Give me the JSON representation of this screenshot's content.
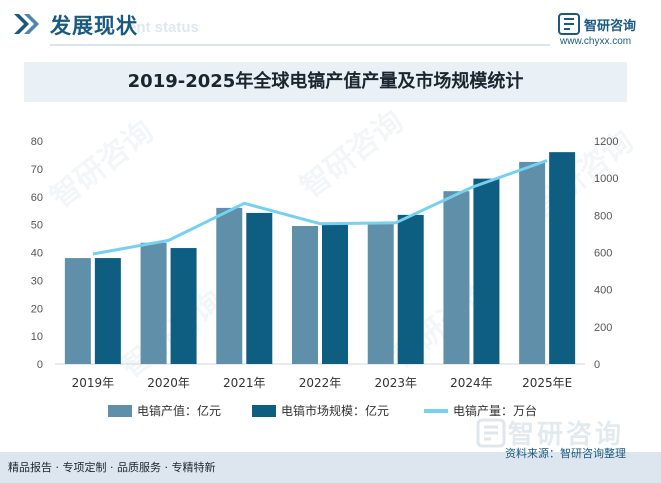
{
  "header": {
    "title": "发展现状",
    "subtitle": "ent status",
    "brand_name": "智研咨询",
    "brand_url": "www.chyxx.com"
  },
  "chart_data": {
    "type": "bar",
    "title": "2019-2025年全球电镐产值产量及市场规模统计",
    "categories": [
      "2019年",
      "2020年",
      "2021年",
      "2022年",
      "2023年",
      "2024年",
      "2025年E"
    ],
    "series": [
      {
        "name": "电镐产值：亿元",
        "type": "bar",
        "axis": "left",
        "color": "#5f8fa9",
        "values": [
          38.0,
          43.5,
          56.0,
          49.5,
          50.3,
          62.0,
          72.5
        ]
      },
      {
        "name": "电镐市场规模：亿元",
        "type": "bar",
        "axis": "left",
        "color": "#0e5e82",
        "values": [
          38.0,
          41.6,
          54.2,
          50.3,
          53.5,
          66.5,
          76.0
        ]
      },
      {
        "name": "电镐产量：万台",
        "type": "line",
        "axis": "right",
        "color": "#75d1ef",
        "values": [
          592,
          665,
          865,
          755,
          760,
          950,
          1095
        ]
      }
    ],
    "y_left": {
      "min": 0,
      "max": 80,
      "ticks": [
        0,
        10,
        20,
        30,
        40,
        50,
        60,
        70,
        80
      ]
    },
    "y_right": {
      "min": 0,
      "max": 1200,
      "ticks": [
        0,
        200,
        400,
        600,
        800,
        1000,
        1200
      ]
    },
    "legend_position": "bottom",
    "grid": false
  },
  "footer": {
    "left_text": "精品报告 · 专项定制 · 品质服务 · 专精特新",
    "source_text": "资料来源：智研咨询整理"
  },
  "colors": {
    "brand": "#1b5a80",
    "title_band": "#e9f0f6",
    "footer_band": "#dde6ee"
  }
}
